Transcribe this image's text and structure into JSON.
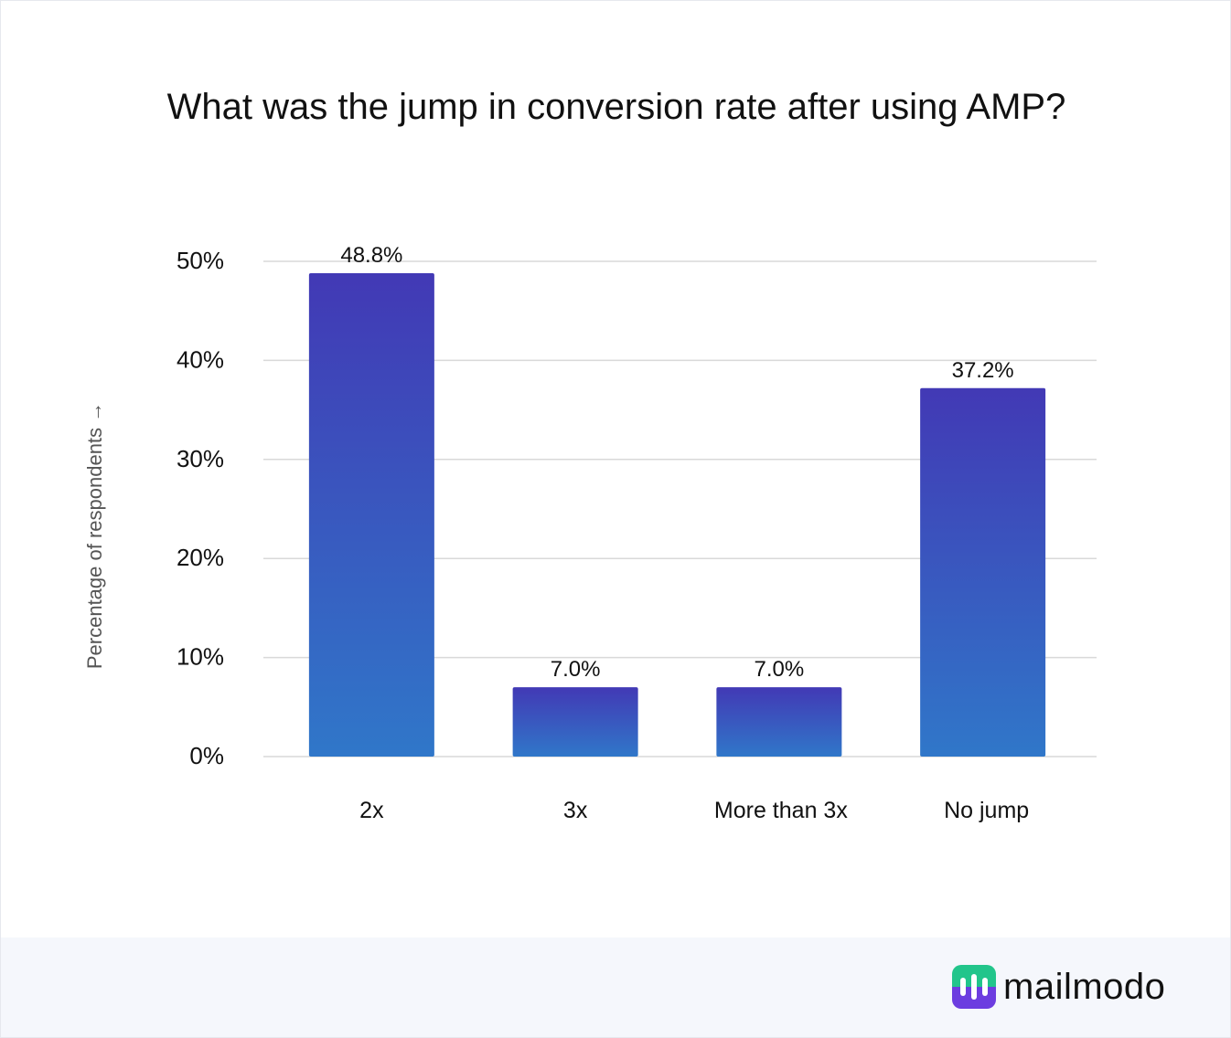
{
  "chart_data": {
    "type": "bar",
    "title": "What was the jump in conversion rate after using AMP?",
    "ylabel": "Percentage of respondents →",
    "xlabel": "",
    "categories": [
      "2x",
      "3x",
      "More than 3x",
      "No jump"
    ],
    "values": [
      48.8,
      7.0,
      7.0,
      37.2
    ],
    "value_labels": [
      "48.8%",
      "7.0%",
      "7.0%",
      "37.2%"
    ],
    "ylim": [
      0,
      50
    ],
    "yticks": [
      0,
      10,
      20,
      30,
      40,
      50
    ],
    "ytick_labels": [
      "0%",
      "10%",
      "20%",
      "30%",
      "40%",
      "50%"
    ],
    "grid": true,
    "colors": {
      "bar_top": "#4239b5",
      "bar_bottom": "#3077c9",
      "grid": "#d9d9d9",
      "text": "#111111",
      "axis_label": "#555555"
    }
  },
  "brand": {
    "name": "mailmodo",
    "icon": "mailmodo-logo-icon",
    "colors": {
      "green": "#22c58b",
      "purple": "#6c3de0"
    }
  },
  "footer": {
    "background": "#f5f7fc"
  }
}
